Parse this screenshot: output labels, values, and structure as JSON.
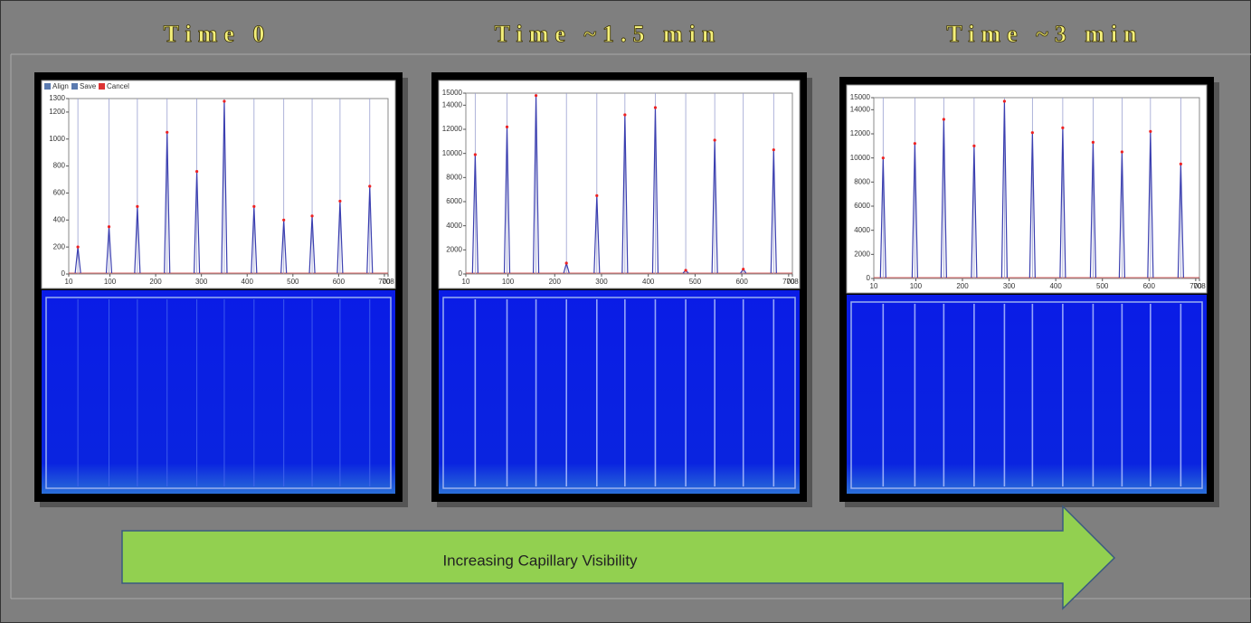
{
  "toolbar": [
    "Align",
    "Save",
    "Cancel"
  ],
  "arrow_label": "Increasing Capillary Visibility",
  "chart_data": [
    {
      "type": "bar",
      "title": "Time 0",
      "x": [
        30,
        98,
        160,
        225,
        290,
        350,
        415,
        480,
        542,
        603,
        668
      ],
      "values": [
        200,
        350,
        500,
        1050,
        760,
        1280,
        500,
        400,
        430,
        540,
        650
      ],
      "color": "#3b3fb0",
      "xlim": [
        10,
        708
      ],
      "xticks": [
        10,
        100,
        200,
        300,
        400,
        500,
        600,
        700,
        708
      ],
      "ylim": [
        0,
        1300
      ],
      "yticks": [
        0,
        200,
        400,
        600,
        800,
        1000,
        1200,
        1300
      ]
    },
    {
      "type": "bar",
      "title": "Time ~1.5 min",
      "x": [
        30,
        98,
        160,
        225,
        290,
        350,
        415,
        480,
        542,
        603,
        668
      ],
      "values": [
        9900,
        12200,
        14800,
        900,
        6500,
        13200,
        13800,
        300,
        11100,
        400,
        10300
      ],
      "color": "#3b3fb0",
      "xlim": [
        10,
        708
      ],
      "xticks": [
        10,
        100,
        200,
        300,
        400,
        500,
        600,
        700,
        708
      ],
      "ylim": [
        0,
        15000
      ],
      "yticks": [
        0,
        2000,
        4000,
        6000,
        8000,
        10000,
        12000,
        14000,
        15000
      ]
    },
    {
      "type": "bar",
      "title": "Time ~3 min",
      "x": [
        30,
        98,
        160,
        225,
        290,
        350,
        415,
        480,
        542,
        603,
        668
      ],
      "values": [
        10000,
        11200,
        13200,
        11000,
        14700,
        12100,
        12500,
        11300,
        10500,
        12200,
        9500
      ],
      "color": "#3b3fb0",
      "xlim": [
        10,
        708
      ],
      "xticks": [
        10,
        100,
        200,
        300,
        400,
        500,
        600,
        700,
        708
      ],
      "ylim": [
        0,
        15000
      ],
      "yticks": [
        0,
        2000,
        4000,
        6000,
        8000,
        10000,
        12000,
        14000,
        15000
      ]
    }
  ]
}
